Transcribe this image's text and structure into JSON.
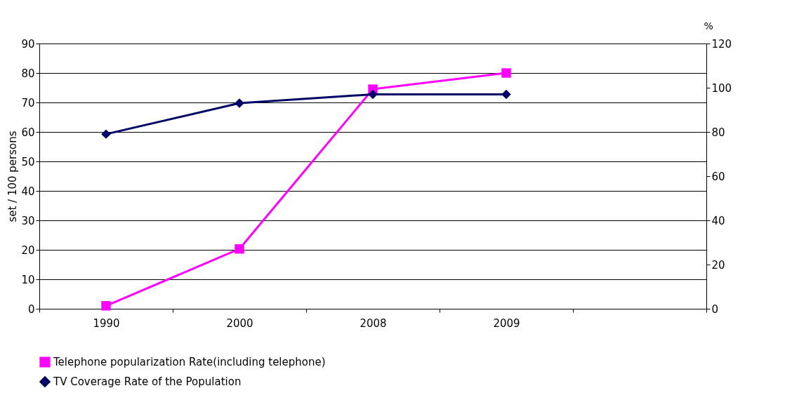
{
  "chart_data": {
    "type": "line",
    "categories": [
      "1990",
      "2000",
      "2008",
      "2009",
      null
    ],
    "ylabel": "set / 100 persons",
    "y2label": "%",
    "ylim": [
      0,
      90
    ],
    "yticks": [
      0,
      10,
      20,
      30,
      40,
      50,
      60,
      70,
      80,
      90
    ],
    "y2lim": [
      0,
      120
    ],
    "y2ticks": [
      0,
      20,
      40,
      60,
      80,
      100,
      120
    ],
    "grid": "y",
    "legend": "bottom",
    "series": [
      {
        "name": "Telephone popularization Rate(including telephone)",
        "color": "#ff00ff",
        "marker": "square",
        "values": [
          1,
          20.3,
          74.5,
          80,
          null
        ]
      },
      {
        "name": "TV Coverage Rate of the Population",
        "color": "#000066",
        "marker": "diamond",
        "axis": "y2",
        "values": [
          79,
          93,
          97,
          97,
          null
        ]
      }
    ]
  }
}
